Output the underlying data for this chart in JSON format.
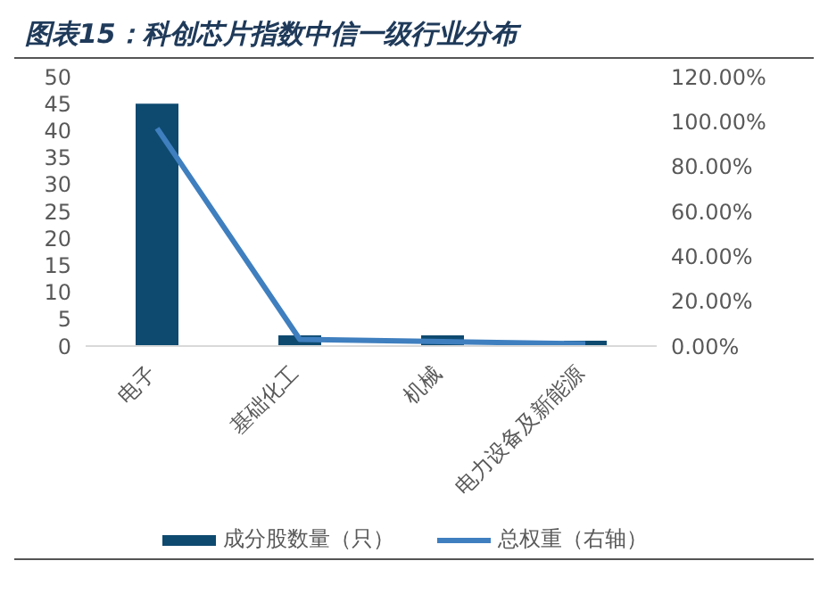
{
  "chart_data": {
    "type": "bar",
    "title": "图表15：科创芯片指数中信一级行业分布",
    "categories": [
      "电子",
      "基础化工",
      "机械",
      "电力设备及新能源"
    ],
    "series": [
      {
        "name": "成分股数量（只）",
        "color": "#0e4a70",
        "values": [
          45,
          2,
          2,
          1
        ]
      },
      {
        "name": "总权重（右轴）",
        "type": "line",
        "axis": "y2",
        "color": "#3f7fbf",
        "values": [
          97,
          3,
          2,
          1
        ]
      }
    ],
    "ylim": [
      0,
      50
    ],
    "yticks": [
      0,
      5,
      10,
      15,
      20,
      25,
      30,
      35,
      40,
      45,
      50
    ],
    "y2lim": [
      0,
      120
    ],
    "y2ticks": [
      {
        "value": 0,
        "label": "0.00%"
      },
      {
        "value": 20,
        "label": "20.00%"
      },
      {
        "value": 40,
        "label": "40.00%"
      },
      {
        "value": 60,
        "label": "60.00%"
      },
      {
        "value": 80,
        "label": "80.00%"
      },
      {
        "value": 100,
        "label": "100.00%"
      },
      {
        "value": 120,
        "label": "120.00%"
      }
    ],
    "grid": false,
    "legend": "bottom",
    "marker": "none"
  }
}
